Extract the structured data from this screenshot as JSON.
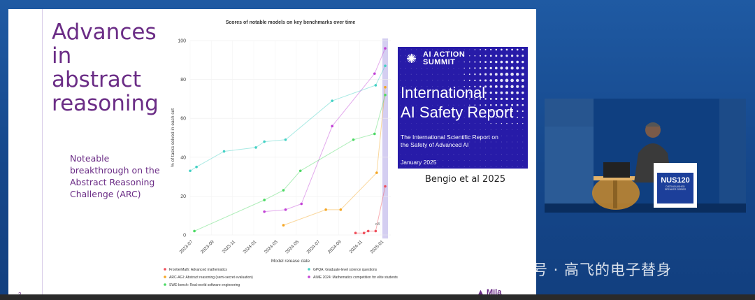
{
  "slide": {
    "title": "Advances\nin\nabstract\nreasoning",
    "note": "Noteable breakthrough on the Abstract Reasoning Challenge (ARC)",
    "page_number": "3",
    "footer_logo": "Mila",
    "citation": "Bengio et al 2025"
  },
  "report_cover": {
    "summary_line1": "AI ACTION",
    "summary_line2": "SUMMIT",
    "title": "International\nAI Safety Report",
    "subtitle": "The International Scientific Report on the Safety of Advanced AI",
    "date": "January 2025"
  },
  "chart_data": {
    "type": "line",
    "title": "Scores of notable models on key benchmarks over time",
    "xlabel": "Model release date",
    "ylabel": "% of tasks solved in each set",
    "ylim": [
      0,
      100
    ],
    "yticks": [
      0,
      20,
      40,
      60,
      80,
      100
    ],
    "xticks": [
      "2023-07",
      "2023-09",
      "2023-11",
      "2024-01",
      "2024-03",
      "2024-05",
      "2024-07",
      "2024-09",
      "2024-11",
      "2025-01"
    ],
    "annotation": "o3",
    "highlight_band": "2025-01",
    "series": [
      {
        "name": "FrontierMath: Advanced mathematics",
        "color": "#ef4f5b",
        "points": [
          [
            15.6,
            1
          ],
          [
            16.4,
            1
          ],
          [
            16.8,
            2
          ],
          [
            17.5,
            2
          ],
          [
            18.4,
            25
          ]
        ]
      },
      {
        "name": "GPQA: Graduate-level science questions",
        "color": "#43d1c4",
        "points": [
          [
            0.0,
            33
          ],
          [
            0.6,
            35
          ],
          [
            3.2,
            43
          ],
          [
            6.2,
            45
          ],
          [
            7.0,
            48
          ],
          [
            9.0,
            49
          ],
          [
            13.4,
            69
          ],
          [
            17.5,
            77
          ],
          [
            18.4,
            87
          ]
        ]
      },
      {
        "name": "ARC-AGI: Abstract reasoning (semi-secret evaluation)",
        "color": "#f5a623",
        "points": [
          [
            8.8,
            5
          ],
          [
            12.8,
            13
          ],
          [
            14.2,
            13
          ],
          [
            17.6,
            32
          ],
          [
            18.4,
            76
          ]
        ]
      },
      {
        "name": "AIME 2024: Mathematics competition for elite students",
        "color": "#c242d6",
        "points": [
          [
            7.0,
            12
          ],
          [
            9.0,
            13
          ],
          [
            10.5,
            16
          ],
          [
            13.4,
            56
          ],
          [
            17.4,
            83
          ],
          [
            18.4,
            96
          ]
        ]
      },
      {
        "name": "SWE-bench: Real-world software engineering",
        "color": "#4cd964",
        "points": [
          [
            0.4,
            2
          ],
          [
            7.0,
            18
          ],
          [
            8.8,
            23
          ],
          [
            10.4,
            33
          ],
          [
            15.4,
            49
          ],
          [
            17.4,
            52
          ],
          [
            18.4,
            72
          ]
        ]
      }
    ]
  },
  "video": {
    "podium_label": "NUS120",
    "podium_sub": "DISTINGUISHED SPEAKER SERIES"
  },
  "watermark": {
    "text": "公众号 · 高飞的电子替身"
  },
  "colors": {
    "slide_accent": "#6b2d86",
    "report_bg": "#271ba8",
    "stage_bg": "#1a4e93"
  }
}
